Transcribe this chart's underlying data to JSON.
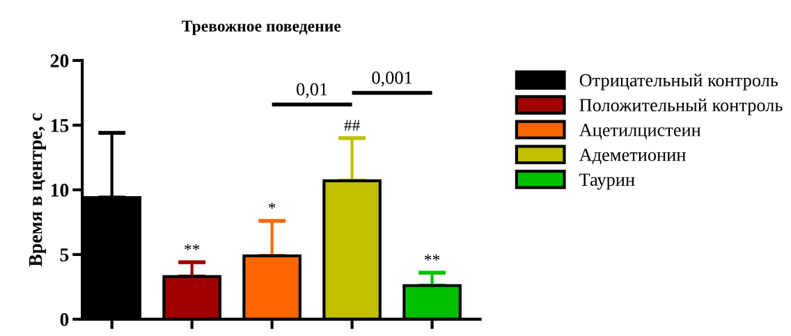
{
  "chart_data": {
    "type": "bar",
    "title": "Тревожное поведение",
    "ylabel": "Время в центре, с",
    "categories": [
      null,
      null,
      null,
      null,
      null
    ],
    "series": [
      {
        "name": "Отрицательный контроль",
        "color": "#000000",
        "values": [
          9.4,
          null,
          null,
          null,
          null
        ],
        "errors": [
          [
            9.4,
            14.4
          ],
          null,
          null,
          null,
          null
        ]
      },
      {
        "name": "Положительный контроль",
        "color": "#a00000",
        "values": [
          null,
          3.3,
          null,
          null,
          null
        ],
        "errors": [
          null,
          [
            3.3,
            4.4
          ],
          null,
          null,
          null
        ]
      },
      {
        "name": "Ацетилцистеин",
        "color": "#ff6600",
        "values": [
          null,
          null,
          4.9,
          null,
          null
        ],
        "errors": [
          null,
          null,
          [
            4.9,
            7.6
          ],
          null,
          null
        ]
      },
      {
        "name": "Адеметионин",
        "color": "#c0c000",
        "values": [
          null,
          null,
          null,
          10.7,
          null
        ],
        "errors": [
          null,
          null,
          null,
          [
            10.7,
            14.0
          ],
          null
        ]
      },
      {
        "name": "Таурин",
        "color": "#00c000",
        "values": [
          null,
          null,
          null,
          null,
          2.6
        ],
        "errors": [
          null,
          null,
          null,
          null,
          [
            2.6,
            3.6
          ]
        ]
      }
    ],
    "annotations": [
      "**",
      "*",
      "##",
      "**",
      "0,01",
      "0,001"
    ],
    "ylim": [
      0,
      20
    ],
    "yticks": [
      0,
      5,
      10,
      15,
      20
    ],
    "grid": false,
    "legend": "right"
  }
}
